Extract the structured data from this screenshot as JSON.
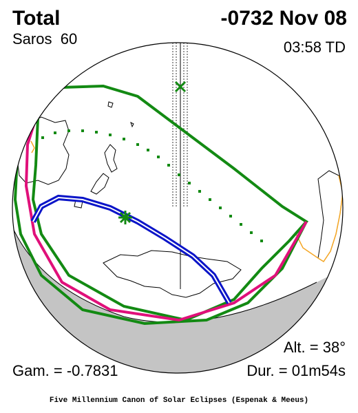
{
  "header": {
    "type": "Total",
    "date": "-0732 Nov 08",
    "saros_label": "Saros",
    "saros_number": "60",
    "time": "03:58 TD"
  },
  "stats": {
    "altitude": "Alt. = 38°",
    "gamma": "Gam. = -0.7831",
    "duration": "Dur. = 01m54s"
  },
  "footer": {
    "credit": "Five Millennium Canon of Solar Eclipses (Espenak & Meeus)"
  },
  "colors": {
    "penumbra_limits": "#138a13",
    "max_eclipse_curve": "#e0107a",
    "central_path": "#0a14c8",
    "night_side": "#c4c4c4",
    "coastline": "#000000",
    "land_highlight": "#f5a623"
  },
  "markers": {
    "greatest_eclipse": "green-asterisk",
    "subsolar_point": "green-x"
  }
}
